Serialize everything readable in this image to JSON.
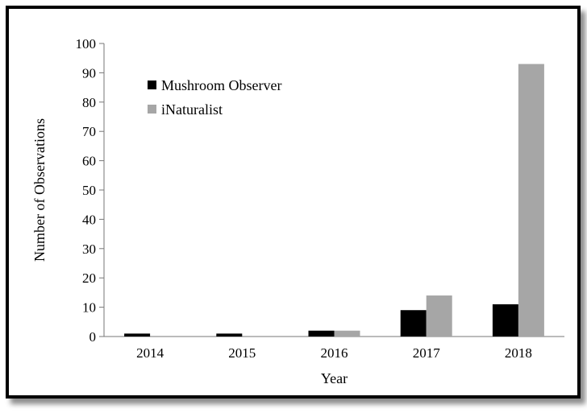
{
  "chart_data": {
    "type": "bar",
    "categories": [
      "2014",
      "2015",
      "2016",
      "2017",
      "2018"
    ],
    "series": [
      {
        "name": "Mushroom Observer",
        "values": [
          1,
          1,
          2,
          9,
          11
        ],
        "color": "#000000"
      },
      {
        "name": "iNaturalist",
        "values": [
          0,
          0,
          2,
          14,
          93
        ],
        "color": "#a6a6a6"
      }
    ],
    "xlabel": "Year",
    "ylabel": "Number of Observations",
    "ylim": [
      0,
      100
    ],
    "yticks": [
      0,
      10,
      20,
      30,
      40,
      50,
      60,
      70,
      80,
      90,
      100
    ],
    "grid": false,
    "legend_position": "top-left"
  }
}
